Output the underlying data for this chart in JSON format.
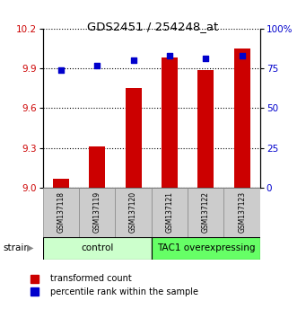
{
  "title": "GDS2451 / 254248_at",
  "samples": [
    "GSM137118",
    "GSM137119",
    "GSM137120",
    "GSM137121",
    "GSM137122",
    "GSM137123"
  ],
  "red_values": [
    9.07,
    9.31,
    9.75,
    9.98,
    9.89,
    10.05
  ],
  "blue_values": [
    74,
    77,
    80,
    83,
    81,
    83
  ],
  "ylim_left": [
    9.0,
    10.2
  ],
  "ylim_right": [
    0,
    100
  ],
  "yticks_left": [
    9.0,
    9.3,
    9.6,
    9.9,
    10.2
  ],
  "yticks_right": [
    0,
    25,
    50,
    75,
    100
  ],
  "control_label": "control",
  "overexp_label": "TAC1 overexpressing",
  "control_color": "#ccffcc",
  "overexp_color": "#66ff66",
  "group_label": "strain",
  "legend_red": "transformed count",
  "legend_blue": "percentile rank within the sample",
  "bar_color": "#cc0000",
  "dot_color": "#0000cc",
  "tick_label_color_left": "#cc0000",
  "tick_label_color_right": "#0000cc",
  "bar_width": 0.45
}
